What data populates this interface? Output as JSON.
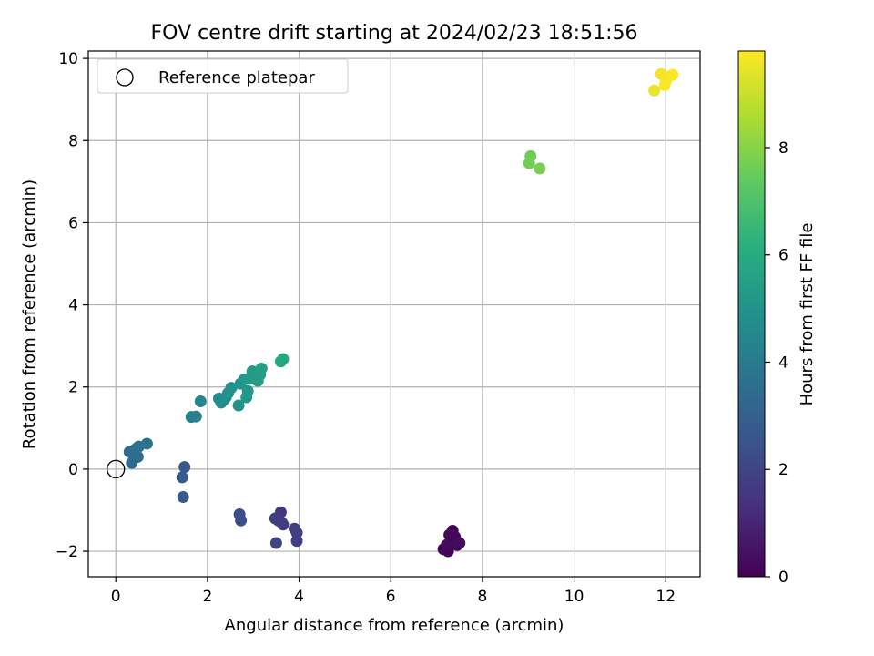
{
  "chart_data": {
    "type": "scatter",
    "title": "FOV centre drift starting at 2024/02/23 18:51:56",
    "xlabel": "Angular distance from reference (arcmin)",
    "ylabel": "Rotation from reference (arcmin)",
    "xlim": [
      -0.6,
      12.75
    ],
    "ylim": [
      -2.62,
      10.18
    ],
    "xticks": [
      0,
      2,
      4,
      6,
      8,
      10,
      12
    ],
    "yticks": [
      -2,
      0,
      2,
      4,
      6,
      8,
      10
    ],
    "grid": true,
    "legend": {
      "position": "top-left",
      "entries": [
        "Reference platepar"
      ]
    },
    "reference_point": {
      "x": 0,
      "y": 0
    },
    "colorbar": {
      "label": "Hours from first FF file",
      "colormap": "viridis",
      "range": [
        0,
        9.8
      ],
      "ticks": [
        0,
        2,
        4,
        6,
        8
      ]
    },
    "points": [
      {
        "x": 7.2,
        "y": -1.9,
        "c": 0.05
      },
      {
        "x": 7.25,
        "y": -2.0,
        "c": 0.08
      },
      {
        "x": 7.3,
        "y": -1.75,
        "c": 0.1
      },
      {
        "x": 7.35,
        "y": -1.5,
        "c": 0.12
      },
      {
        "x": 7.4,
        "y": -1.65,
        "c": 0.15
      },
      {
        "x": 7.28,
        "y": -1.6,
        "c": 0.18
      },
      {
        "x": 7.45,
        "y": -1.85,
        "c": 0.2
      },
      {
        "x": 7.15,
        "y": -1.95,
        "c": 0.1
      },
      {
        "x": 7.22,
        "y": -1.85,
        "c": 0.25
      },
      {
        "x": 7.5,
        "y": -1.8,
        "c": 0.3
      },
      {
        "x": 3.6,
        "y": -1.05,
        "c": 1.6
      },
      {
        "x": 3.65,
        "y": -1.35,
        "c": 1.7
      },
      {
        "x": 3.55,
        "y": -1.25,
        "c": 1.65
      },
      {
        "x": 3.48,
        "y": -1.2,
        "c": 1.75
      },
      {
        "x": 3.9,
        "y": -1.45,
        "c": 1.8
      },
      {
        "x": 3.95,
        "y": -1.55,
        "c": 1.85
      },
      {
        "x": 3.95,
        "y": -1.75,
        "c": 1.9
      },
      {
        "x": 3.5,
        "y": -1.8,
        "c": 2.0
      },
      {
        "x": 3.62,
        "y": -1.3,
        "c": 1.72
      },
      {
        "x": 2.7,
        "y": -1.1,
        "c": 2.3
      },
      {
        "x": 2.73,
        "y": -1.25,
        "c": 2.35
      },
      {
        "x": 1.5,
        "y": 0.05,
        "c": 2.7
      },
      {
        "x": 1.45,
        "y": -0.2,
        "c": 2.75
      },
      {
        "x": 1.47,
        "y": -0.68,
        "c": 2.8
      },
      {
        "x": 0.35,
        "y": 0.15,
        "c": 3.3
      },
      {
        "x": 0.3,
        "y": 0.42,
        "c": 3.4
      },
      {
        "x": 0.38,
        "y": 0.45,
        "c": 3.45
      },
      {
        "x": 0.48,
        "y": 0.3,
        "c": 3.5
      },
      {
        "x": 0.45,
        "y": 0.5,
        "c": 3.55
      },
      {
        "x": 0.5,
        "y": 0.55,
        "c": 3.6
      },
      {
        "x": 0.68,
        "y": 0.62,
        "c": 3.7
      },
      {
        "x": 1.65,
        "y": 1.27,
        "c": 4.3
      },
      {
        "x": 1.75,
        "y": 1.28,
        "c": 4.35
      },
      {
        "x": 1.85,
        "y": 1.65,
        "c": 4.45
      },
      {
        "x": 2.25,
        "y": 1.72,
        "c": 4.7
      },
      {
        "x": 2.3,
        "y": 1.62,
        "c": 4.75
      },
      {
        "x": 2.35,
        "y": 1.68,
        "c": 4.8
      },
      {
        "x": 2.4,
        "y": 1.75,
        "c": 4.85
      },
      {
        "x": 2.45,
        "y": 1.85,
        "c": 4.9
      },
      {
        "x": 2.52,
        "y": 1.98,
        "c": 4.95
      },
      {
        "x": 2.68,
        "y": 1.55,
        "c": 5.0
      },
      {
        "x": 2.72,
        "y": 2.08,
        "c": 5.05
      },
      {
        "x": 2.8,
        "y": 2.18,
        "c": 5.1
      },
      {
        "x": 2.85,
        "y": 1.75,
        "c": 5.15
      },
      {
        "x": 2.88,
        "y": 1.9,
        "c": 5.2
      },
      {
        "x": 2.9,
        "y": 2.2,
        "c": 5.25
      },
      {
        "x": 2.98,
        "y": 2.38,
        "c": 5.3
      },
      {
        "x": 3.05,
        "y": 2.25,
        "c": 5.35
      },
      {
        "x": 3.1,
        "y": 2.15,
        "c": 5.4
      },
      {
        "x": 3.15,
        "y": 2.3,
        "c": 5.45
      },
      {
        "x": 3.18,
        "y": 2.45,
        "c": 5.5
      },
      {
        "x": 3.6,
        "y": 2.62,
        "c": 5.8
      },
      {
        "x": 3.65,
        "y": 2.68,
        "c": 5.85
      },
      {
        "x": 9.05,
        "y": 7.62,
        "c": 7.6
      },
      {
        "x": 9.02,
        "y": 7.45,
        "c": 7.65
      },
      {
        "x": 9.25,
        "y": 7.32,
        "c": 7.75
      },
      {
        "x": 11.75,
        "y": 9.22,
        "c": 9.5
      },
      {
        "x": 11.9,
        "y": 9.62,
        "c": 9.6
      },
      {
        "x": 12.0,
        "y": 9.45,
        "c": 9.65
      },
      {
        "x": 12.05,
        "y": 9.55,
        "c": 9.7
      },
      {
        "x": 12.15,
        "y": 9.6,
        "c": 9.8
      },
      {
        "x": 11.98,
        "y": 9.35,
        "c": 9.75
      }
    ]
  }
}
